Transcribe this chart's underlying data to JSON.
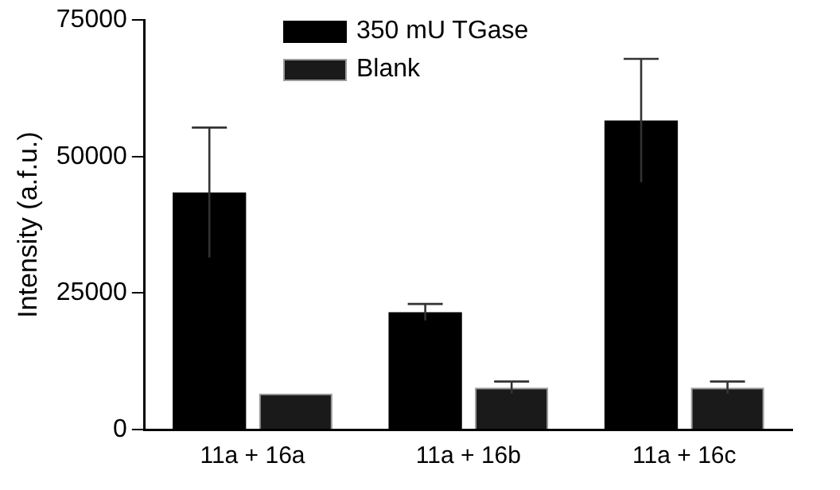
{
  "chart_data": {
    "type": "bar",
    "ylabel": "Intensity (a.f.u.)",
    "categories": [
      "11a + 16a",
      "11a + 16b",
      "11a + 16c"
    ],
    "series": [
      {
        "name": "350 mU TGase",
        "color": "#000000",
        "values": [
          43400,
          21500,
          56600
        ],
        "errors": [
          11900,
          1500,
          11300
        ]
      },
      {
        "name": "Blank",
        "color": "#1a1a1a",
        "values": [
          6600,
          7700,
          7700
        ],
        "errors": [
          null,
          1100,
          1100
        ]
      }
    ],
    "ylim": [
      0,
      75000
    ],
    "yticks": [
      0,
      25000,
      50000,
      75000
    ],
    "grid": false,
    "legend": "top"
  }
}
